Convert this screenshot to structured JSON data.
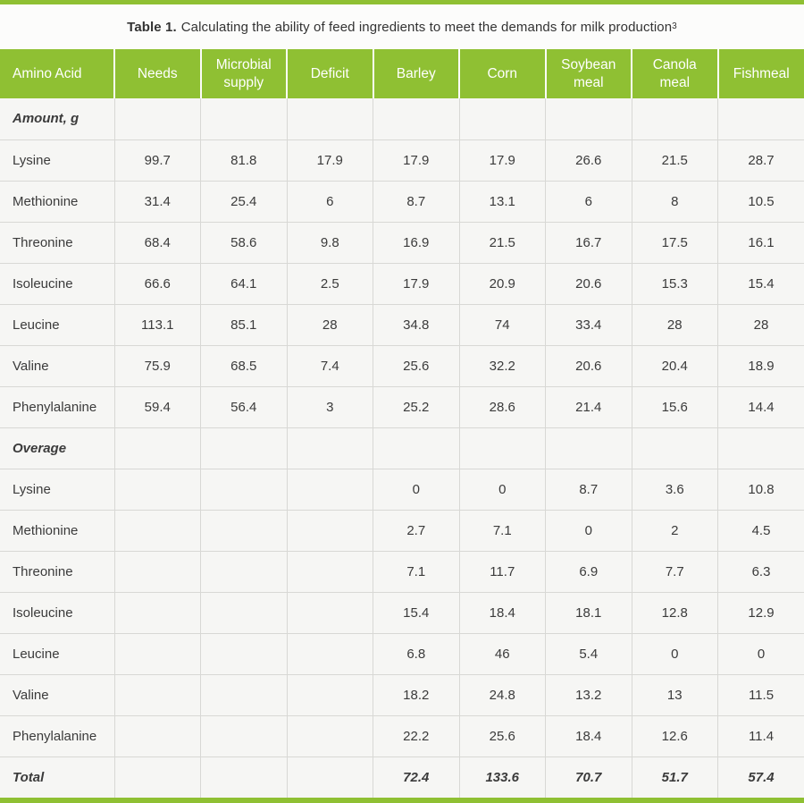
{
  "page": {
    "title_prefix": "Table 1.",
    "title_text": "Calculating the ability of feed ingredients to meet the demands for milk production",
    "title_superscript": "3"
  },
  "colors": {
    "accent_green": "#8fc033",
    "header_text": "#ffffff",
    "body_text": "#3b3b3b"
  },
  "table": {
    "columns": [
      "Amino Acid",
      "Needs",
      "Microbial supply",
      "Deficit",
      "Barley",
      "Corn",
      "Soybean meal",
      "Canola meal",
      "Fishmeal"
    ],
    "rows": [
      {
        "type": "section",
        "label": "Amount, g",
        "values": [
          "",
          "",
          "",
          "",
          "",
          "",
          "",
          ""
        ]
      },
      {
        "type": "data",
        "label": "Lysine",
        "values": [
          "99.7",
          "81.8",
          "17.9",
          "17.9",
          "17.9",
          "26.6",
          "21.5",
          "28.7"
        ]
      },
      {
        "type": "data",
        "label": "Methionine",
        "values": [
          "31.4",
          "25.4",
          "6",
          "8.7",
          "13.1",
          "6",
          "8",
          "10.5"
        ]
      },
      {
        "type": "data",
        "label": "Threonine",
        "values": [
          "68.4",
          "58.6",
          "9.8",
          "16.9",
          "21.5",
          "16.7",
          "17.5",
          "16.1"
        ]
      },
      {
        "type": "data",
        "label": "Isoleucine",
        "values": [
          "66.6",
          "64.1",
          "2.5",
          "17.9",
          "20.9",
          "20.6",
          "15.3",
          "15.4"
        ]
      },
      {
        "type": "data",
        "label": "Leucine",
        "values": [
          "113.1",
          "85.1",
          "28",
          "34.8",
          "74",
          "33.4",
          "28",
          "28"
        ]
      },
      {
        "type": "data",
        "label": "Valine",
        "values": [
          "75.9",
          "68.5",
          "7.4",
          "25.6",
          "32.2",
          "20.6",
          "20.4",
          "18.9"
        ]
      },
      {
        "type": "data",
        "label": "Phenylalanine",
        "values": [
          "59.4",
          "56.4",
          "3",
          "25.2",
          "28.6",
          "21.4",
          "15.6",
          "14.4"
        ]
      },
      {
        "type": "section",
        "label": "Overage",
        "values": [
          "",
          "",
          "",
          "",
          "",
          "",
          "",
          ""
        ]
      },
      {
        "type": "data",
        "label": "Lysine",
        "values": [
          "",
          "",
          "",
          "0",
          "0",
          "8.7",
          "3.6",
          "10.8"
        ]
      },
      {
        "type": "data",
        "label": "Methionine",
        "values": [
          "",
          "",
          "",
          "2.7",
          "7.1",
          "0",
          "2",
          "4.5"
        ]
      },
      {
        "type": "data",
        "label": "Threonine",
        "values": [
          "",
          "",
          "",
          "7.1",
          "11.7",
          "6.9",
          "7.7",
          "6.3"
        ]
      },
      {
        "type": "data",
        "label": "Isoleucine",
        "values": [
          "",
          "",
          "",
          "15.4",
          "18.4",
          "18.1",
          "12.8",
          "12.9"
        ]
      },
      {
        "type": "data",
        "label": "Leucine",
        "values": [
          "",
          "",
          "",
          "6.8",
          "46",
          "5.4",
          "0",
          "0"
        ]
      },
      {
        "type": "data",
        "label": "Valine",
        "values": [
          "",
          "",
          "",
          "18.2",
          "24.8",
          "13.2",
          "13",
          "11.5"
        ]
      },
      {
        "type": "data",
        "label": "Phenylalanine",
        "values": [
          "",
          "",
          "",
          "22.2",
          "25.6",
          "18.4",
          "12.6",
          "11.4"
        ]
      },
      {
        "type": "total",
        "label": "Total",
        "values": [
          "",
          "",
          "",
          "72.4",
          "133.6",
          "70.7",
          "51.7",
          "57.4"
        ]
      }
    ]
  }
}
